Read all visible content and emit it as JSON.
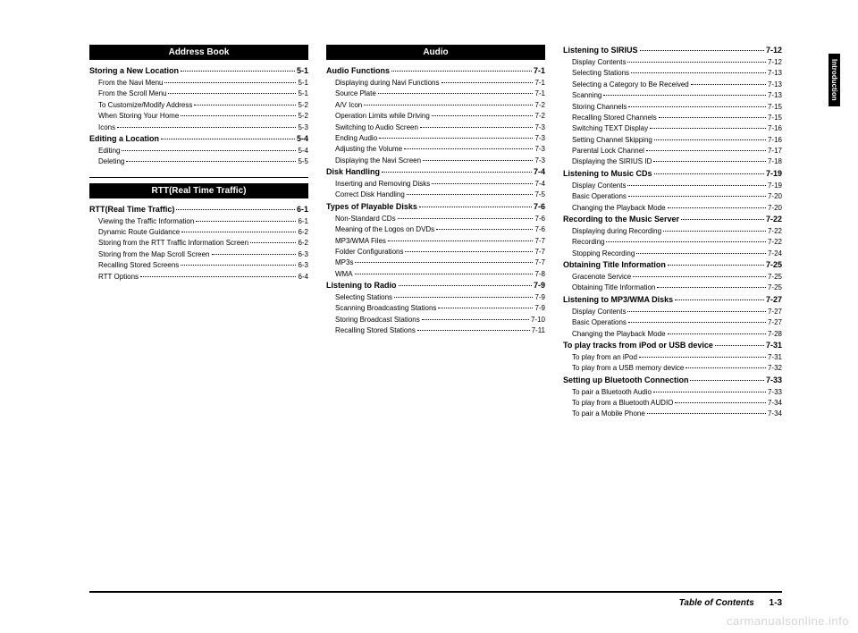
{
  "sideTab": "Introduction",
  "footer": {
    "label": "Table of Contents",
    "page": "1-3"
  },
  "watermark": "carmanualsonline.info",
  "columns": [
    {
      "blocks": [
        {
          "type": "header",
          "text": "Address Book"
        },
        {
          "type": "bold",
          "label": "Storing a New Location",
          "page": "5-1"
        },
        {
          "type": "sub",
          "label": "From the Navi Menu",
          "page": "5-1"
        },
        {
          "type": "sub",
          "label": "From the Scroll Menu",
          "page": "5-1"
        },
        {
          "type": "sub",
          "label": "To Customize/Modify Address",
          "page": "5-2"
        },
        {
          "type": "sub",
          "label": "When Storing Your Home",
          "page": "5-2"
        },
        {
          "type": "sub",
          "label": "Icons",
          "page": "5-3"
        },
        {
          "type": "bold",
          "label": "Editing a Location",
          "page": "5-4"
        },
        {
          "type": "sub",
          "label": "Editing",
          "page": "5-4"
        },
        {
          "type": "sub",
          "label": "Deleting",
          "page": "5-5"
        },
        {
          "type": "divider"
        },
        {
          "type": "header",
          "text": "RTT(Real Time Traffic)"
        },
        {
          "type": "bold",
          "label": "RTT(Real Time Traffic)",
          "page": "6-1"
        },
        {
          "type": "sub",
          "label": "Viewing the Traffic Information",
          "page": "6-1"
        },
        {
          "type": "sub",
          "label": "Dynamic Route Guidance",
          "page": "6-2"
        },
        {
          "type": "sub",
          "label": "Storing from the RTT Traffic Information Screen",
          "page": "6-2"
        },
        {
          "type": "sub",
          "label": "Storing from the Map Scroll Screen",
          "page": "6-3"
        },
        {
          "type": "sub",
          "label": "Recalling Stored Screens",
          "page": "6-3"
        },
        {
          "type": "sub",
          "label": "RTT Options",
          "page": "6-4"
        }
      ]
    },
    {
      "blocks": [
        {
          "type": "header",
          "text": "Audio"
        },
        {
          "type": "bold",
          "label": "Audio Functions",
          "page": "7-1"
        },
        {
          "type": "sub",
          "label": "Displaying during Navi Functions",
          "page": "7-1"
        },
        {
          "type": "sub",
          "label": "Source Plate",
          "page": "7-1"
        },
        {
          "type": "sub",
          "label": "A/V Icon",
          "page": "7-2"
        },
        {
          "type": "sub",
          "label": "Operation Limits while Driving",
          "page": "7-2"
        },
        {
          "type": "sub",
          "label": "Switching to Audio Screen",
          "page": "7-3"
        },
        {
          "type": "sub",
          "label": "Ending Audio",
          "page": "7-3"
        },
        {
          "type": "sub",
          "label": "Adjusting the Volume",
          "page": "7-3"
        },
        {
          "type": "sub",
          "label": "Displaying the Navi Screen",
          "page": "7-3"
        },
        {
          "type": "bold",
          "label": "Disk Handling",
          "page": "7-4"
        },
        {
          "type": "sub",
          "label": "Inserting and Removing Disks",
          "page": "7-4"
        },
        {
          "type": "sub",
          "label": "Correct Disk Handling",
          "page": "7-5"
        },
        {
          "type": "bold",
          "label": "Types of Playable Disks",
          "page": "7-6"
        },
        {
          "type": "sub",
          "label": "Non-Standard CDs",
          "page": "7-6"
        },
        {
          "type": "sub",
          "label": "Meaning of the Logos on DVDs",
          "page": "7-6"
        },
        {
          "type": "sub",
          "label": "MP3/WMA Files",
          "page": "7-7"
        },
        {
          "type": "sub",
          "label": "Folder Configurations",
          "page": "7-7"
        },
        {
          "type": "sub",
          "label": "MP3s",
          "page": "7-7"
        },
        {
          "type": "sub",
          "label": "WMA",
          "page": "7-8"
        },
        {
          "type": "bold",
          "label": "Listening to Radio",
          "page": "7-9"
        },
        {
          "type": "sub",
          "label": "Selecting Stations",
          "page": "7-9"
        },
        {
          "type": "sub",
          "label": "Scanning Broadcasting Stations",
          "page": "7-9"
        },
        {
          "type": "sub",
          "label": "Storing Broadcast Stations",
          "page": "7-10"
        },
        {
          "type": "sub",
          "label": "Recalling Stored Stations",
          "page": "7-11"
        }
      ]
    },
    {
      "blocks": [
        {
          "type": "bold",
          "label": "Listening to SIRIUS",
          "page": "7-12"
        },
        {
          "type": "sub",
          "label": "Display Contents",
          "page": "7-12"
        },
        {
          "type": "sub",
          "label": "Selecting Stations",
          "page": "7-13"
        },
        {
          "type": "sub",
          "label": "Selecting a Category to Be Received",
          "page": "7-13"
        },
        {
          "type": "sub",
          "label": "Scanning",
          "page": "7-13"
        },
        {
          "type": "sub",
          "label": "Storing Channels",
          "page": "7-15"
        },
        {
          "type": "sub",
          "label": "Recalling Stored Channels",
          "page": "7-15"
        },
        {
          "type": "sub",
          "label": "Switching TEXT Display",
          "page": "7-16"
        },
        {
          "type": "sub",
          "label": "Setting Channel Skipping",
          "page": "7-16"
        },
        {
          "type": "sub",
          "label": "Parental Lock Channel",
          "page": "7-17"
        },
        {
          "type": "sub",
          "label": "Displaying the SIRIUS ID",
          "page": "7-18"
        },
        {
          "type": "bold",
          "label": "Listening to Music CDs",
          "page": "7-19"
        },
        {
          "type": "sub",
          "label": "Display Contents",
          "page": "7-19"
        },
        {
          "type": "sub",
          "label": "Basic Operations",
          "page": "7-20"
        },
        {
          "type": "sub",
          "label": "Changing the Playback Mode",
          "page": "7-20"
        },
        {
          "type": "bold",
          "label": "Recording to the Music Server",
          "page": "7-22"
        },
        {
          "type": "sub",
          "label": "Displaying during Recording",
          "page": "7-22"
        },
        {
          "type": "sub",
          "label": "Recording",
          "page": "7-22"
        },
        {
          "type": "sub",
          "label": "Stopping Recording",
          "page": "7-24"
        },
        {
          "type": "bold",
          "label": "Obtaining Title Information",
          "page": "7-25"
        },
        {
          "type": "sub",
          "label": "Gracenote Service",
          "page": "7-25"
        },
        {
          "type": "sub",
          "label": "Obtaining Title Information",
          "page": "7-25"
        },
        {
          "type": "bold",
          "label": "Listening to MP3/WMA Disks",
          "page": "7-27"
        },
        {
          "type": "sub",
          "label": "Display Contents",
          "page": "7-27"
        },
        {
          "type": "sub",
          "label": "Basic Operations",
          "page": "7-27"
        },
        {
          "type": "sub",
          "label": "Changing the Playback Mode",
          "page": "7-28"
        },
        {
          "type": "bold",
          "label": "To play tracks from iPod or USB device",
          "page": "7-31"
        },
        {
          "type": "sub",
          "label": "To play from an iPod",
          "page": "7-31"
        },
        {
          "type": "sub",
          "label": "To play from a USB memory device",
          "page": "7-32"
        },
        {
          "type": "bold",
          "label": "Setting up Bluetooth Connection",
          "page": "7-33"
        },
        {
          "type": "sub",
          "label": "To pair a Bluetooth Audio",
          "page": "7-33"
        },
        {
          "type": "sub",
          "label": "To play from a Bluetooth AUDIO",
          "page": "7-34"
        },
        {
          "type": "sub",
          "label": "To pair a Mobile Phone",
          "page": "7-34"
        }
      ]
    }
  ]
}
